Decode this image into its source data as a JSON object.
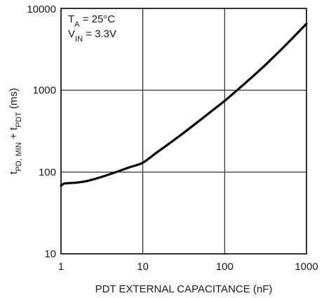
{
  "chart_data": {
    "type": "line",
    "xscale": "log",
    "yscale": "log",
    "xlim": [
      1,
      1000
    ],
    "ylim": [
      10,
      10000
    ],
    "x_ticks": [
      1,
      10,
      100,
      1000
    ],
    "y_ticks": [
      10,
      100,
      1000,
      10000
    ],
    "x_tick_labels": [
      "1",
      "10",
      "100",
      "1000"
    ],
    "y_tick_labels": [
      "10",
      "100",
      "1000",
      "10000"
    ],
    "xlabel": "PDT EXTERNAL CAPACITANCE (nF)",
    "ylabel": {
      "parts": [
        {
          "text": "t",
          "sub": false
        },
        {
          "text": "PD, MIN",
          "sub": true
        },
        {
          "text": " + t",
          "sub": false
        },
        {
          "text": "PDT",
          "sub": true
        },
        {
          "text": " (ms)",
          "sub": false
        }
      ]
    },
    "annotations": [
      {
        "parts": [
          {
            "text": "T",
            "sub": false
          },
          {
            "text": "A",
            "sub": true
          },
          {
            "text": " = 25°C",
            "sub": false
          }
        ]
      },
      {
        "parts": [
          {
            "text": "V",
            "sub": false
          },
          {
            "text": "IN",
            "sub": true
          },
          {
            "text": " = 3.3V",
            "sub": false
          }
        ]
      }
    ],
    "grid": true,
    "line_color": "#000000",
    "series": [
      {
        "x": [
          1,
          1.08,
          1.2,
          1.5,
          2,
          3,
          5,
          7,
          10,
          15,
          20,
          30,
          50,
          70,
          100,
          150,
          200,
          300,
          500,
          700,
          1000
        ],
        "y": [
          68,
          72,
          73,
          74,
          77,
          86,
          102,
          115,
          130,
          175,
          215,
          290,
          430,
          560,
          740,
          1050,
          1350,
          1950,
          3200,
          4500,
          6500
        ]
      }
    ]
  }
}
